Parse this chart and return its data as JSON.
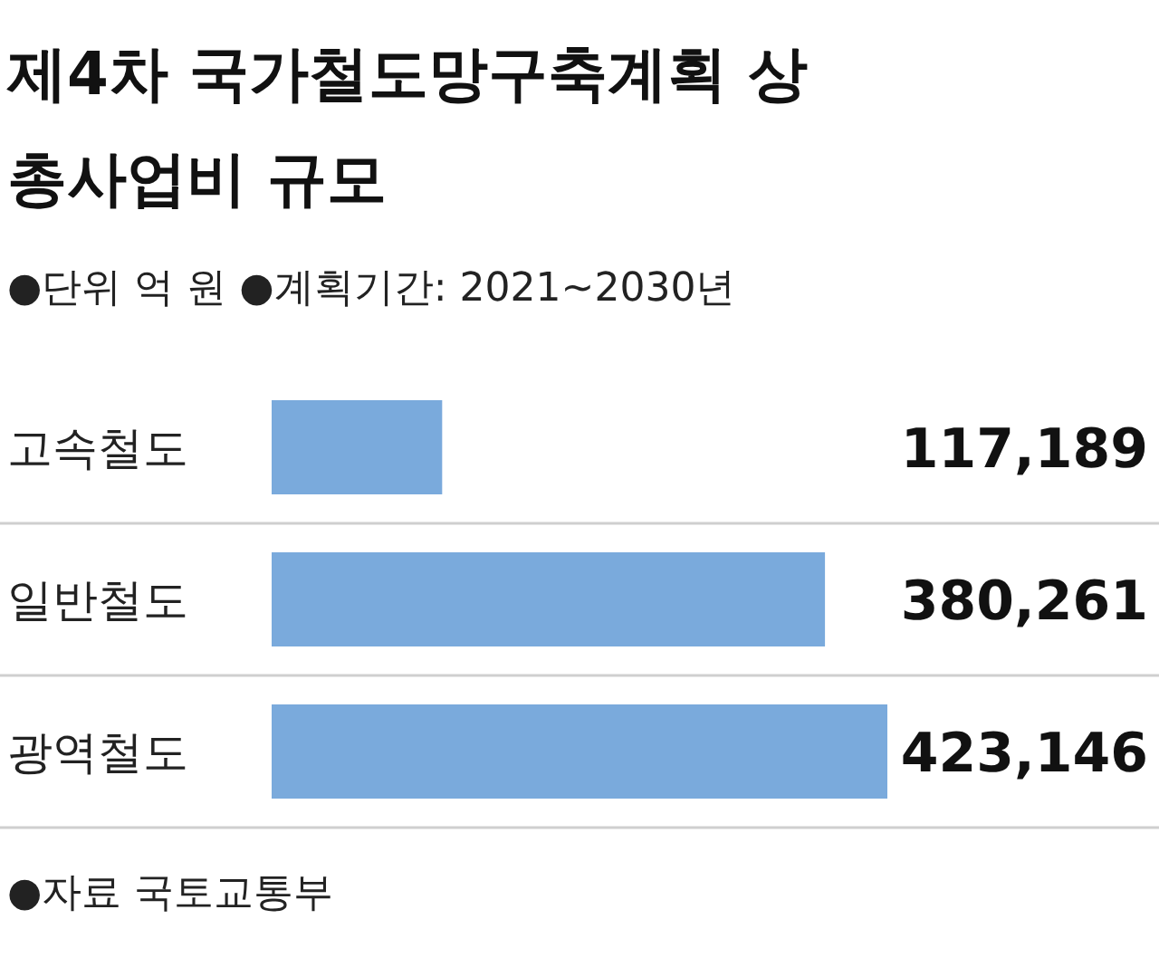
{
  "chart_data": {
    "type": "bar",
    "orientation": "horizontal",
    "title": "제4차 국가철도망구축계획 상\n총사업비 규모",
    "subtitle": "●단위 억 원 ●계획기간: 2021~2030년",
    "categories": [
      "고속철도",
      "일반철도",
      "광역철도"
    ],
    "values": [
      117189,
      380261,
      423146
    ],
    "color": "#7aaadc",
    "value_labels": [
      "117,189",
      "380,261",
      "423,146"
    ],
    "annotations": [
      "●자료 국토교통부"
    ]
  }
}
